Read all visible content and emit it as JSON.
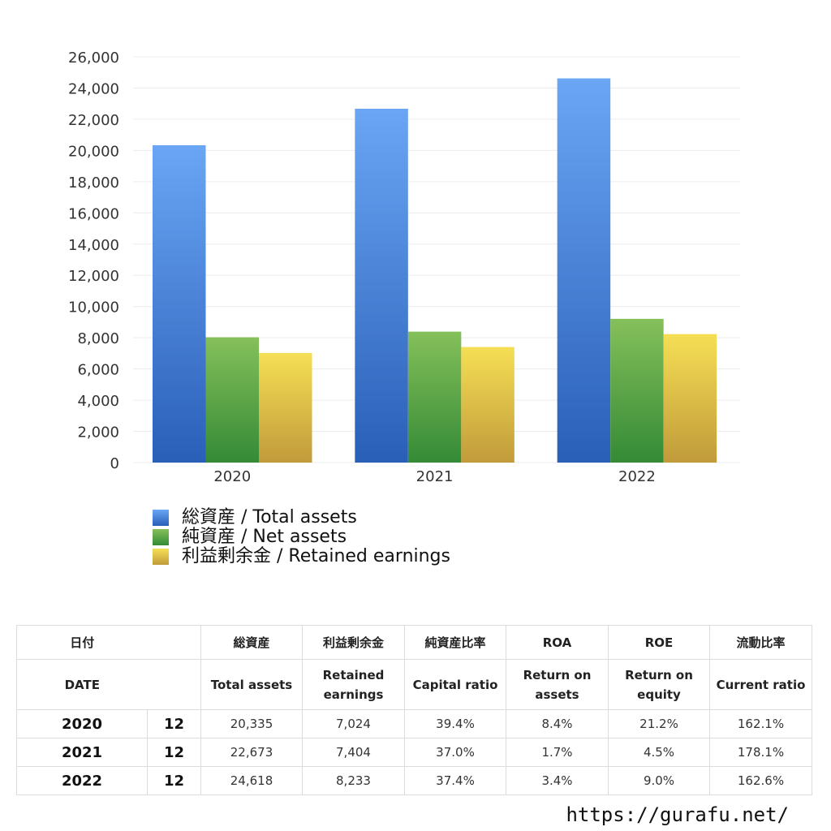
{
  "chart_data": {
    "type": "bar",
    "categories": [
      "2020",
      "2021",
      "2022"
    ],
    "series": [
      {
        "name": "総資産 / Total assets",
        "values": [
          20335,
          22673,
          24618
        ]
      },
      {
        "name": "純資産 / Net assets",
        "values": [
          8030,
          8390,
          9210
        ]
      },
      {
        "name": "利益剰余金 / Retained earnings",
        "values": [
          7024,
          7404,
          8233
        ]
      }
    ],
    "yticks": [
      "0",
      "2,000",
      "4,000",
      "6,000",
      "8,000",
      "10,000",
      "12,000",
      "14,000",
      "16,000",
      "18,000",
      "20,000",
      "22,000",
      "24,000",
      "26,000"
    ],
    "ylim": [
      0,
      26000
    ],
    "legend_position": "bottom-left",
    "grid": true,
    "colors": {
      "total": [
        "#6aa6f4",
        "#2a5fb8"
      ],
      "net": [
        "#85c05a",
        "#348a36"
      ],
      "retained": [
        "#f5df55",
        "#c19b3a"
      ]
    }
  },
  "table": {
    "header_ja": [
      "日付",
      "",
      "総資産",
      "利益剰余金",
      "純資産比率",
      "ROA",
      "ROE",
      "流動比率"
    ],
    "header_en": [
      [
        "DATE"
      ],
      [
        ""
      ],
      [
        "Total assets"
      ],
      [
        "Retained",
        "earnings"
      ],
      [
        "Capital ratio"
      ],
      [
        "Return on",
        "assets"
      ],
      [
        "Return on",
        "equity"
      ],
      [
        "Current ratio"
      ]
    ],
    "rows": [
      [
        "2020",
        "12",
        "20,335",
        "7,024",
        "39.4%",
        "8.4%",
        "21.2%",
        "162.1%"
      ],
      [
        "2021",
        "12",
        "22,673",
        "7,404",
        "37.0%",
        "1.7%",
        "4.5%",
        "178.1%"
      ],
      [
        "2022",
        "12",
        "24,618",
        "8,233",
        "37.4%",
        "3.4%",
        "9.0%",
        "162.6%"
      ]
    ]
  },
  "url": "https://gurafu.net/"
}
